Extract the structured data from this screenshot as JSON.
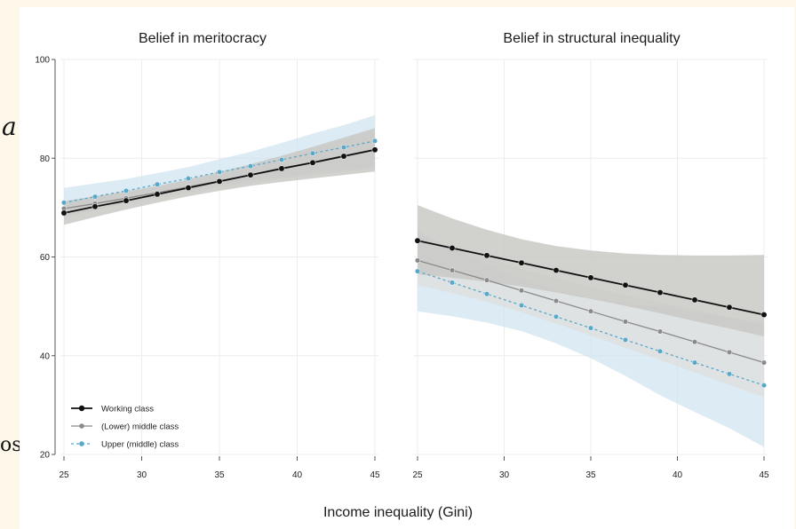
{
  "chart_data": {
    "type": "line",
    "xlabel": "Income inequality (Gini)",
    "ylabel": "",
    "x": [
      25,
      27,
      29,
      31,
      33,
      35,
      37,
      39,
      41,
      43,
      45
    ],
    "x_ticks": [
      25,
      30,
      35,
      40,
      45
    ],
    "y_ticks": [
      20,
      40,
      60,
      80,
      100
    ],
    "ylim": [
      20,
      100
    ],
    "xlim": [
      25,
      45
    ],
    "grid": true,
    "legend_position": "bottom-left",
    "series_styles": [
      {
        "name": "Working class",
        "color": "#111111",
        "dash": "solid",
        "band_color": "#c9c9c6"
      },
      {
        "name": "(Lower) middle class",
        "color": "#8a8a8a",
        "dash": "solid",
        "band_color": "#dededb"
      },
      {
        "name": "Upper (middle) class",
        "color": "#5aa8c9",
        "dash": "dotted",
        "band_color": "#cfe3ef"
      }
    ],
    "panels": [
      {
        "title": "Belief in meritocracy",
        "series": [
          {
            "name": "Working class",
            "values": [
              68.9,
              70.2,
              71.4,
              72.7,
              74.0,
              75.3,
              76.6,
              77.9,
              79.1,
              80.4,
              81.7
            ],
            "lower": [
              66.5,
              68.1,
              69.6,
              71.0,
              72.3,
              73.4,
              74.4,
              75.2,
              75.9,
              76.6,
              77.3
            ],
            "upper": [
              71.3,
              72.3,
              73.3,
              74.4,
              75.7,
              77.2,
              78.8,
              80.5,
              82.3,
              84.2,
              86.1
            ]
          },
          {
            "name": "(Lower) middle class",
            "values": [
              69.8,
              70.8,
              71.9,
              73.0,
              74.2,
              75.4,
              76.6,
              77.9,
              79.2,
              80.5,
              81.8
            ],
            "lower": [
              68.4,
              69.5,
              70.7,
              71.8,
              73.0,
              74.1,
              75.0,
              75.9,
              76.6,
              77.3,
              77.9
            ],
            "upper": [
              71.2,
              72.1,
              73.1,
              74.2,
              75.4,
              76.7,
              78.2,
              79.9,
              81.8,
              83.7,
              85.7
            ]
          },
          {
            "name": "Upper (middle) class",
            "values": [
              71.0,
              72.2,
              73.4,
              74.7,
              75.9,
              77.2,
              78.4,
              79.7,
              81.0,
              82.2,
              83.5
            ],
            "lower": [
              68.0,
              69.5,
              71.0,
              72.4,
              73.6,
              74.6,
              75.5,
              76.3,
              77.0,
              77.7,
              78.3
            ],
            "upper": [
              74.0,
              74.9,
              75.8,
              77.0,
              78.2,
              79.8,
              81.3,
              83.1,
              85.0,
              86.7,
              88.7
            ]
          }
        ]
      },
      {
        "title": "Belief in structural inequality",
        "series": [
          {
            "name": "Working class",
            "values": [
              63.3,
              61.8,
              60.3,
              58.8,
              57.3,
              55.8,
              54.3,
              52.8,
              51.3,
              49.8,
              48.3
            ],
            "lower": [
              56.5,
              55.8,
              55.0,
              54.0,
              52.8,
              51.5,
              50.1,
              48.6,
              47.0,
              45.5,
              43.9
            ],
            "upper": [
              70.5,
              67.8,
              65.5,
              63.6,
              62.2,
              61.3,
              60.7,
              60.4,
              60.3,
              60.3,
              60.4
            ]
          },
          {
            "name": "(Lower) middle class",
            "values": [
              59.3,
              57.3,
              55.3,
              53.2,
              51.1,
              49.0,
              46.9,
              44.9,
              42.8,
              40.7,
              38.6
            ],
            "lower": [
              54.3,
              52.7,
              50.9,
              48.8,
              46.5,
              44.1,
              41.6,
              39.1,
              36.6,
              34.1,
              31.6
            ],
            "upper": [
              64.3,
              62.0,
              59.7,
              57.6,
              55.7,
              54.0,
              52.3,
              50.8,
              49.3,
              47.8,
              46.3
            ]
          },
          {
            "name": "Upper (middle) class",
            "values": [
              57.1,
              54.8,
              52.5,
              50.2,
              47.9,
              45.6,
              43.2,
              40.9,
              38.6,
              36.3,
              34.0
            ],
            "lower": [
              49.0,
              48.0,
              46.7,
              45.0,
              42.5,
              39.5,
              35.9,
              32.0,
              28.6,
              25.3,
              21.5
            ],
            "upper": [
              65.2,
              61.6,
              58.3,
              55.4,
              53.3,
              51.7,
              50.6,
              49.8,
              48.8,
              47.7,
              46.5
            ]
          }
        ]
      }
    ]
  },
  "background_glyphs": {
    "italic_a": "a",
    "os": "os"
  }
}
